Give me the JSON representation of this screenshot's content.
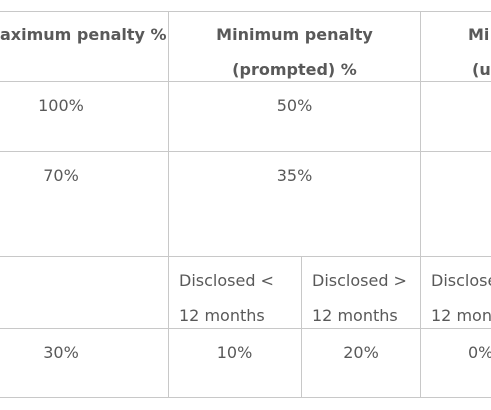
{
  "table": {
    "header": {
      "col1": "aximum penalty %",
      "col2_line1": "Minimum penalty",
      "col2_line2": "(prompted) %",
      "col3_line1": "Mi",
      "col3_line2": "(u"
    },
    "row1": {
      "max": "100%",
      "min_prompted": "50%"
    },
    "row2": {
      "max": "70%",
      "min_prompted": "35%"
    },
    "row3": {
      "disc_lt_line1": "Disclosed <",
      "disc_lt_line2": "12 months",
      "disc_gt_line1": "Disclosed >",
      "disc_gt_line2": "12 months",
      "disc_u_line1": "Disclose",
      "disc_u_line2": "12 mon"
    },
    "row4": {
      "max": "30%",
      "lt": "10%",
      "gt": "20%",
      "u": "0%"
    }
  }
}
